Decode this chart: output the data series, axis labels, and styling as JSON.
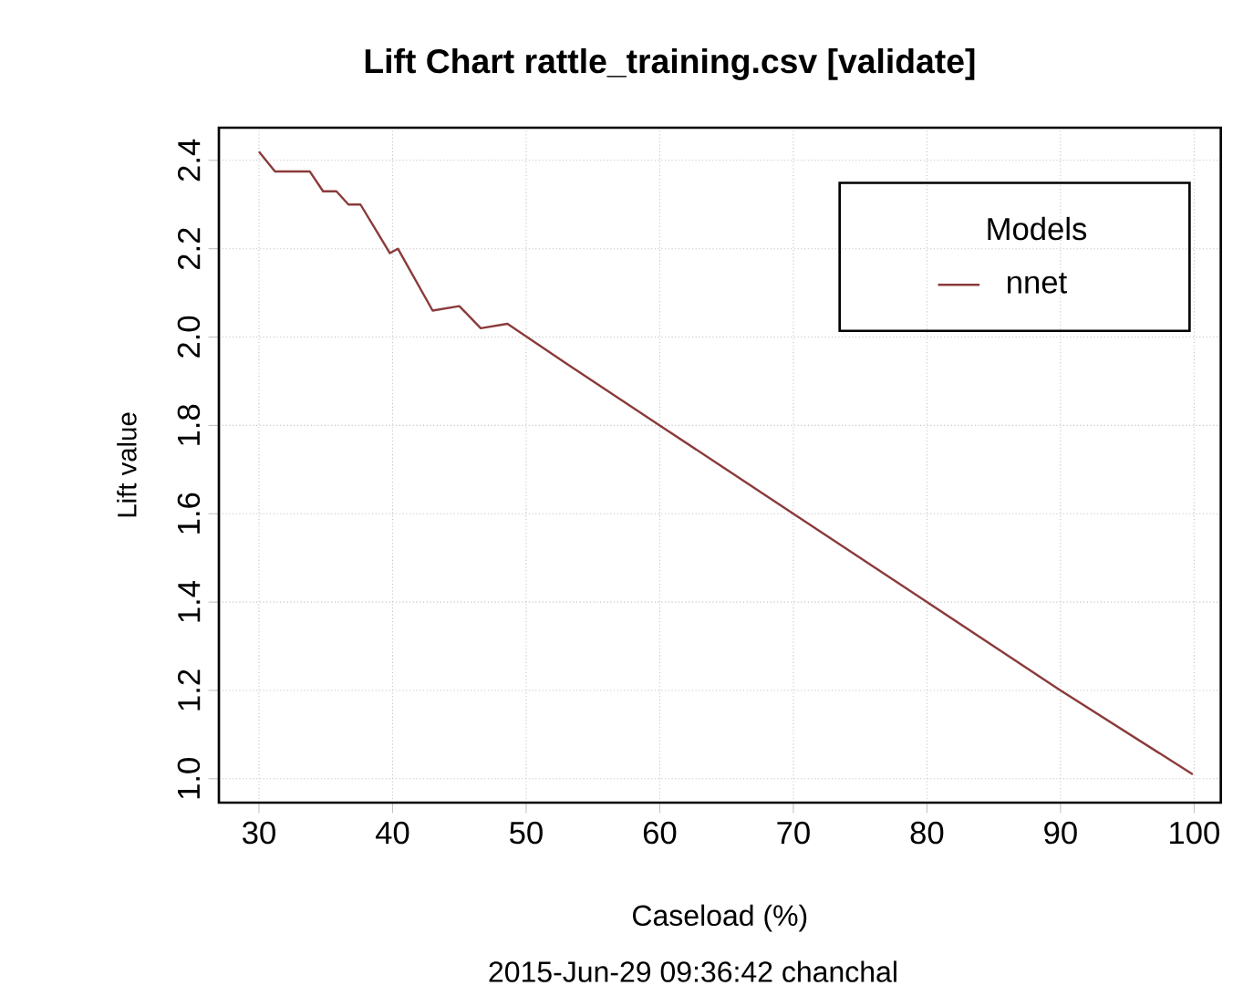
{
  "chart_data": {
    "type": "line",
    "title": "Lift Chart  rattle_training.csv [validate]",
    "xlabel": "Caseload (%)",
    "ylabel": "Lift value",
    "annotations": [
      "2015-Jun-29 09:36:42 chanchal"
    ],
    "legend_title": "Models",
    "legend": "top right",
    "grid": true,
    "marker": "none",
    "line_style": "solid",
    "xlim": [
      27,
      102
    ],
    "ylim": [
      0.946,
      2.474
    ],
    "xticks": [
      30,
      40,
      50,
      60,
      70,
      80,
      90,
      100
    ],
    "yticks": [
      {
        "value": 1.0,
        "label": "1.0"
      },
      {
        "value": 1.2,
        "label": "1.2"
      },
      {
        "value": 1.4,
        "label": "1.4"
      },
      {
        "value": 1.6,
        "label": "1.6"
      },
      {
        "value": 1.8,
        "label": "1.8"
      },
      {
        "value": 2.0,
        "label": "2.0"
      },
      {
        "value": 2.2,
        "label": "2.2"
      },
      {
        "value": 2.4,
        "label": "2.4"
      }
    ],
    "series": [
      {
        "name": "nnet",
        "color": "#8b3a3a",
        "x": [
          30,
          31.2,
          33.8,
          34.8,
          35.8,
          36.7,
          37.6,
          39.8,
          40.4,
          43,
          45,
          46.6,
          48.6,
          53,
          60,
          70,
          80,
          90,
          99.9
        ],
        "values": [
          2.42,
          2.375,
          2.375,
          2.33,
          2.33,
          2.3,
          2.3,
          2.19,
          2.2,
          2.06,
          2.07,
          2.02,
          2.03,
          1.94,
          1.8,
          1.6,
          1.4,
          1.2,
          1.01
        ]
      }
    ]
  }
}
